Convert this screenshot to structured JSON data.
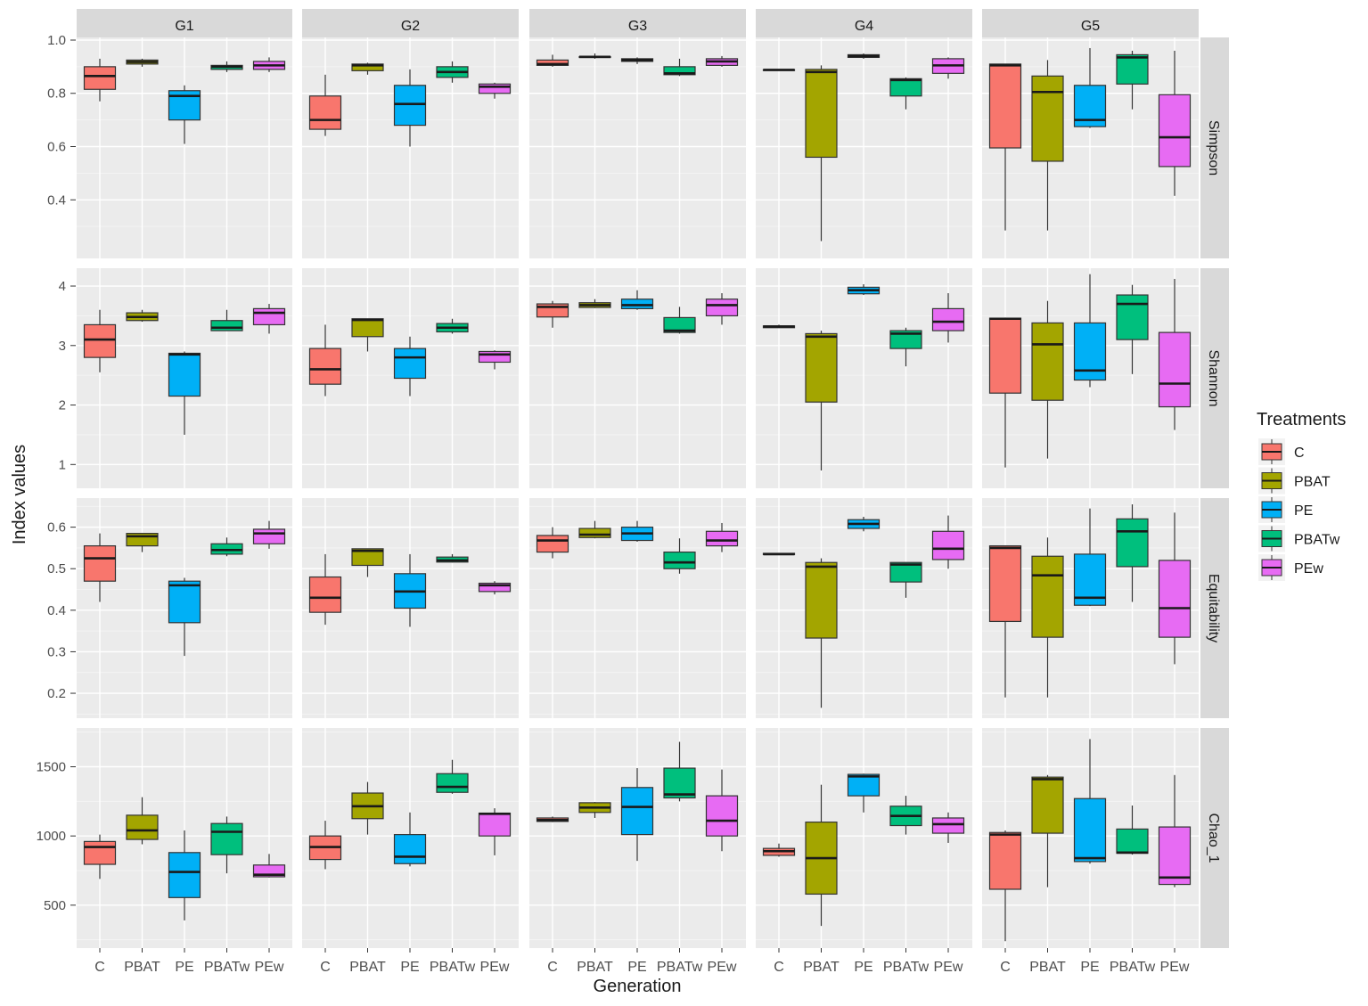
{
  "chart_data": {
    "type": "boxplot",
    "title": "",
    "xlabel": "Generation",
    "ylabel": "Index values",
    "legend": {
      "title": "Treatments",
      "position": "right",
      "entries": [
        {
          "name": "C",
          "color": "#F8766D"
        },
        {
          "name": "PBAT",
          "color": "#A3A500"
        },
        {
          "name": "PE",
          "color": "#00B0F6"
        },
        {
          "name": "PBATw",
          "color": "#00BF7D"
        },
        {
          "name": "PEw",
          "color": "#E76BF3"
        }
      ]
    },
    "categories": [
      "C",
      "PBAT",
      "PE",
      "PBATw",
      "PEw"
    ],
    "columns": [
      "G1",
      "G2",
      "G3",
      "G4",
      "G5"
    ],
    "rows": [
      {
        "name": "Simpson",
        "ylim": [
          0.18,
          1.01
        ],
        "ticks": [
          0.4,
          0.6,
          0.8,
          1.0
        ],
        "tick_labels": [
          "0.4",
          "0.6",
          "0.8",
          "1.0"
        ],
        "boxes": [
          [
            [
              0.77,
              0.815,
              0.865,
              0.9,
              0.93
            ],
            [
              0.9,
              0.91,
              0.918,
              0.925,
              0.93
            ],
            [
              0.61,
              0.7,
              0.79,
              0.81,
              0.83
            ],
            [
              0.88,
              0.89,
              0.9,
              0.905,
              0.92
            ],
            [
              0.88,
              0.89,
              0.905,
              0.92,
              0.935
            ]
          ],
          [
            [
              0.64,
              0.665,
              0.7,
              0.79,
              0.87
            ],
            [
              0.87,
              0.885,
              0.905,
              0.91,
              0.915
            ],
            [
              0.6,
              0.68,
              0.76,
              0.83,
              0.89
            ],
            [
              0.84,
              0.86,
              0.88,
              0.9,
              0.92
            ],
            [
              0.78,
              0.8,
              0.825,
              0.835,
              0.84
            ]
          ],
          [
            [
              0.9,
              0.905,
              0.91,
              0.925,
              0.945
            ],
            [
              0.93,
              0.935,
              0.937,
              0.938,
              0.95
            ],
            [
              0.91,
              0.92,
              0.925,
              0.93,
              0.935
            ],
            [
              0.865,
              0.87,
              0.875,
              0.9,
              0.93
            ],
            [
              0.9,
              0.905,
              0.92,
              0.93,
              0.94
            ]
          ],
          [
            [
              0.885,
              0.886,
              0.888,
              0.889,
              0.89
            ],
            [
              0.245,
              0.56,
              0.88,
              0.89,
              0.905
            ],
            [
              0.93,
              0.935,
              0.94,
              0.945,
              0.95
            ],
            [
              0.74,
              0.79,
              0.85,
              0.855,
              0.86
            ],
            [
              0.855,
              0.875,
              0.905,
              0.93,
              0.935
            ]
          ],
          [
            [
              0.285,
              0.595,
              0.905,
              0.91,
              0.91
            ],
            [
              0.285,
              0.545,
              0.805,
              0.865,
              0.925
            ],
            [
              0.67,
              0.675,
              0.7,
              0.83,
              0.97
            ],
            [
              0.74,
              0.835,
              0.935,
              0.945,
              0.96
            ],
            [
              0.415,
              0.525,
              0.635,
              0.795,
              0.96
            ]
          ]
        ]
      },
      {
        "name": "Shannon",
        "ylim": [
          0.6,
          4.3
        ],
        "ticks": [
          1,
          2,
          3,
          4
        ],
        "tick_labels": [
          "1",
          "2",
          "3",
          "4"
        ],
        "boxes": [
          [
            [
              2.55,
              2.8,
              3.1,
              3.35,
              3.6
            ],
            [
              3.4,
              3.42,
              3.48,
              3.55,
              3.6
            ],
            [
              1.5,
              2.15,
              2.85,
              2.87,
              2.9
            ],
            [
              3.25,
              3.25,
              3.3,
              3.42,
              3.6
            ],
            [
              3.2,
              3.35,
              3.55,
              3.62,
              3.7
            ]
          ],
          [
            [
              2.15,
              2.35,
              2.6,
              2.95,
              3.35
            ],
            [
              2.9,
              3.15,
              3.43,
              3.45,
              3.45
            ],
            [
              2.15,
              2.45,
              2.8,
              2.95,
              3.15
            ],
            [
              3.2,
              3.23,
              3.3,
              3.37,
              3.45
            ],
            [
              2.6,
              2.72,
              2.85,
              2.9,
              2.92
            ]
          ],
          [
            [
              3.3,
              3.48,
              3.65,
              3.7,
              3.75
            ],
            [
              3.63,
              3.64,
              3.68,
              3.72,
              3.78
            ],
            [
              3.6,
              3.62,
              3.68,
              3.78,
              3.93
            ],
            [
              3.2,
              3.22,
              3.25,
              3.47,
              3.65
            ],
            [
              3.35,
              3.5,
              3.68,
              3.78,
              3.88
            ]
          ],
          [
            [
              3.3,
              3.3,
              3.32,
              3.33,
              3.35
            ],
            [
              0.9,
              2.05,
              3.15,
              3.2,
              3.25
            ],
            [
              3.85,
              3.87,
              3.93,
              3.98,
              4.03
            ],
            [
              2.65,
              2.95,
              3.2,
              3.25,
              3.3
            ],
            [
              3.05,
              3.25,
              3.4,
              3.62,
              3.88
            ]
          ],
          [
            [
              0.95,
              2.2,
              3.45,
              3.46,
              3.47
            ],
            [
              1.1,
              2.08,
              3.02,
              3.38,
              3.75
            ],
            [
              2.3,
              2.42,
              2.58,
              3.38,
              4.2
            ],
            [
              2.52,
              3.1,
              3.7,
              3.85,
              4.02
            ],
            [
              1.58,
              1.97,
              2.36,
              3.22,
              4.12
            ]
          ]
        ]
      },
      {
        "name": "Equitability",
        "ylim": [
          0.14,
          0.67
        ],
        "ticks": [
          0.2,
          0.3,
          0.4,
          0.5,
          0.6
        ],
        "tick_labels": [
          "0.2",
          "0.3",
          "0.4",
          "0.5",
          "0.6"
        ],
        "boxes": [
          [
            [
              0.42,
              0.47,
              0.525,
              0.555,
              0.585
            ],
            [
              0.54,
              0.555,
              0.578,
              0.585,
              0.585
            ],
            [
              0.29,
              0.37,
              0.46,
              0.47,
              0.478
            ],
            [
              0.53,
              0.535,
              0.545,
              0.56,
              0.575
            ],
            [
              0.548,
              0.56,
              0.585,
              0.595,
              0.615
            ]
          ],
          [
            [
              0.365,
              0.395,
              0.43,
              0.48,
              0.535
            ],
            [
              0.48,
              0.508,
              0.543,
              0.548,
              0.548
            ],
            [
              0.36,
              0.405,
              0.445,
              0.488,
              0.535
            ],
            [
              0.515,
              0.516,
              0.52,
              0.528,
              0.535
            ],
            [
              0.438,
              0.445,
              0.46,
              0.465,
              0.47
            ]
          ],
          [
            [
              0.525,
              0.54,
              0.568,
              0.58,
              0.6
            ],
            [
              0.573,
              0.575,
              0.582,
              0.597,
              0.615
            ],
            [
              0.565,
              0.568,
              0.585,
              0.6,
              0.615
            ],
            [
              0.488,
              0.5,
              0.515,
              0.54,
              0.573
            ],
            [
              0.54,
              0.555,
              0.568,
              0.59,
              0.61
            ]
          ],
          [
            [
              0.533,
              0.534,
              0.535,
              0.537,
              0.538
            ],
            [
              0.165,
              0.333,
              0.505,
              0.515,
              0.525
            ],
            [
              0.59,
              0.597,
              0.608,
              0.618,
              0.625
            ],
            [
              0.43,
              0.468,
              0.51,
              0.515,
              0.515
            ],
            [
              0.5,
              0.522,
              0.548,
              0.59,
              0.628
            ]
          ],
          [
            [
              0.19,
              0.373,
              0.55,
              0.555,
              0.555
            ],
            [
              0.19,
              0.335,
              0.484,
              0.53,
              0.575
            ],
            [
              0.41,
              0.412,
              0.43,
              0.535,
              0.645
            ],
            [
              0.42,
              0.505,
              0.59,
              0.62,
              0.655
            ],
            [
              0.27,
              0.335,
              0.405,
              0.52,
              0.635
            ]
          ]
        ]
      },
      {
        "name": "Chao_1",
        "ylim": [
          190,
          1780
        ],
        "ticks": [
          500,
          1000,
          1500
        ],
        "tick_labels": [
          "500",
          "1000",
          "1500"
        ],
        "boxes": [
          [
            [
              690,
              795,
              920,
              960,
              1010
            ],
            [
              940,
              975,
              1040,
              1150,
              1280
            ],
            [
              390,
              555,
              740,
              880,
              1040
            ],
            [
              730,
              865,
              1030,
              1090,
              1140
            ],
            [
              700,
              705,
              720,
              790,
              870
            ]
          ],
          [
            [
              760,
              830,
              920,
              1000,
              1110
            ],
            [
              1010,
              1125,
              1215,
              1310,
              1390
            ],
            [
              780,
              800,
              850,
              1010,
              1170
            ],
            [
              1305,
              1315,
              1355,
              1450,
              1550
            ],
            [
              860,
              1000,
              1160,
              1165,
              1200
            ]
          ],
          [
            [
              1100,
              1105,
              1115,
              1130,
              1140
            ],
            [
              1130,
              1170,
              1205,
              1240,
              1245
            ],
            [
              820,
              1010,
              1210,
              1350,
              1490
            ],
            [
              1250,
              1275,
              1300,
              1490,
              1680
            ],
            [
              890,
              1000,
              1110,
              1290,
              1480
            ]
          ],
          [
            [
              850,
              860,
              890,
              910,
              945
            ],
            [
              350,
              580,
              840,
              1100,
              1370
            ],
            [
              1170,
              1290,
              1430,
              1445,
              1450
            ],
            [
              1010,
              1075,
              1145,
              1215,
              1290
            ],
            [
              950,
              1020,
              1085,
              1130,
              1170
            ]
          ],
          [
            [
              240,
              615,
              1010,
              1025,
              1040
            ],
            [
              630,
              1020,
              1410,
              1425,
              1440
            ],
            [
              800,
              815,
              840,
              1270,
              1700
            ],
            [
              865,
              875,
              880,
              1050,
              1220
            ],
            [
              630,
              650,
              700,
              1065,
              1440
            ]
          ]
        ]
      }
    ]
  }
}
